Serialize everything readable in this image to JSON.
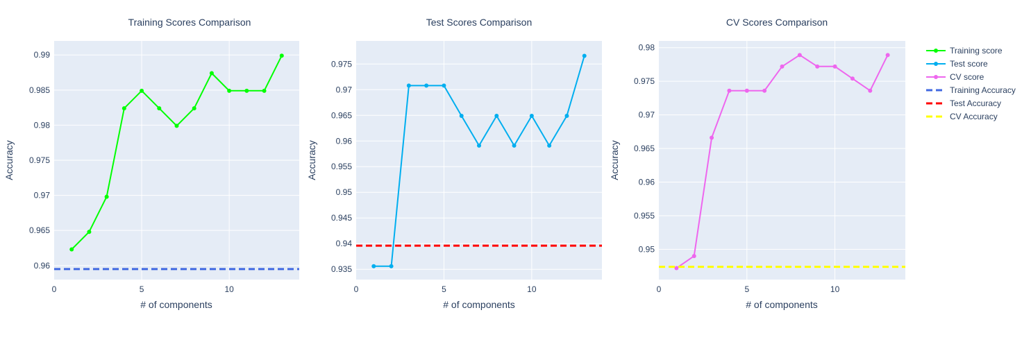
{
  "chart_data": [
    {
      "type": "line",
      "title": "Training Scores Comparison",
      "xlabel": "# of components",
      "ylabel": "Accuracy",
      "xlim": [
        0,
        14
      ],
      "ylim": [
        0.958,
        0.992
      ],
      "xticks": [
        0,
        5,
        10
      ],
      "xtick_labels": [
        "0",
        "5",
        "10"
      ],
      "yticks": [
        0.96,
        0.965,
        0.97,
        0.975,
        0.98,
        0.985,
        0.99
      ],
      "ytick_labels": [
        "0.96",
        "0.965",
        "0.97",
        "0.975",
        "0.98",
        "0.985",
        "0.99"
      ],
      "series": [
        {
          "name": "Training score",
          "color": "#00ff00",
          "x": [
            1,
            2,
            3,
            4,
            5,
            6,
            7,
            8,
            9,
            10,
            11,
            12,
            13
          ],
          "values": [
            0.9623,
            0.9648,
            0.9698,
            0.9824,
            0.9849,
            0.9824,
            0.9799,
            0.9824,
            0.9874,
            0.9849,
            0.9849,
            0.9849,
            0.9899
          ]
        }
      ],
      "reference_line": {
        "name": "Training Accuracy",
        "color": "#4169e1",
        "y": 0.9595
      }
    },
    {
      "type": "line",
      "title": "Test Scores Comparison",
      "xlabel": "# of components",
      "ylabel": "Accuracy",
      "xlim": [
        0,
        14
      ],
      "ylim": [
        0.933,
        0.9795
      ],
      "xticks": [
        0,
        5,
        10
      ],
      "xtick_labels": [
        "0",
        "5",
        "10"
      ],
      "yticks": [
        0.935,
        0.94,
        0.945,
        0.95,
        0.955,
        0.96,
        0.965,
        0.97,
        0.975
      ],
      "ytick_labels": [
        "0.935",
        "0.94",
        "0.945",
        "0.95",
        "0.955",
        "0.96",
        "0.965",
        "0.97",
        "0.975"
      ],
      "series": [
        {
          "name": "Test score",
          "color": "#00aeef",
          "x": [
            1,
            2,
            3,
            4,
            5,
            6,
            7,
            8,
            9,
            10,
            11,
            12,
            13
          ],
          "values": [
            0.9356,
            0.9356,
            0.9708,
            0.9708,
            0.9708,
            0.9649,
            0.9591,
            0.9649,
            0.9591,
            0.9649,
            0.9591,
            0.9649,
            0.9766
          ]
        }
      ],
      "reference_line": {
        "name": "Test Accuracy",
        "color": "#ff0000",
        "y": 0.9396
      }
    },
    {
      "type": "line",
      "title": "CV Scores Comparison",
      "xlabel": "# of components",
      "ylabel": "Accuracy",
      "xlim": [
        0,
        14
      ],
      "ylim": [
        0.9455,
        0.981
      ],
      "xticks": [
        0,
        5,
        10
      ],
      "xtick_labels": [
        "0",
        "5",
        "10"
      ],
      "yticks": [
        0.95,
        0.955,
        0.96,
        0.965,
        0.97,
        0.975,
        0.98
      ],
      "ytick_labels": [
        "0.95",
        "0.955",
        "0.96",
        "0.965",
        "0.97",
        "0.975",
        "0.98"
      ],
      "series": [
        {
          "name": "CV score",
          "color": "#ee66ee",
          "x": [
            1,
            2,
            3,
            4,
            5,
            6,
            7,
            8,
            9,
            10,
            11,
            12,
            13
          ],
          "values": [
            0.9472,
            0.949,
            0.9666,
            0.9736,
            0.9736,
            0.9736,
            0.9772,
            0.9789,
            0.9772,
            0.9772,
            0.9754,
            0.9736,
            0.9789
          ]
        }
      ],
      "reference_line": {
        "name": "CV Accuracy",
        "color": "#ffff00",
        "y": 0.9474
      }
    }
  ],
  "legend": {
    "position": "top-right",
    "items": [
      {
        "label": "Training score",
        "color": "#00ff00",
        "style": "line-marker"
      },
      {
        "label": "Test score",
        "color": "#00aeef",
        "style": "line-marker"
      },
      {
        "label": "CV score",
        "color": "#ee66ee",
        "style": "line-marker"
      },
      {
        "label": "Training Accuracy",
        "color": "#4169e1",
        "style": "dash"
      },
      {
        "label": "Test Accuracy",
        "color": "#ff0000",
        "style": "dash"
      },
      {
        "label": "CV Accuracy",
        "color": "#ffff00",
        "style": "dash"
      }
    ]
  },
  "colors": {
    "plot_background": "#e5ecf6",
    "grid": "#ffffff",
    "text": "#2a3f5f"
  }
}
